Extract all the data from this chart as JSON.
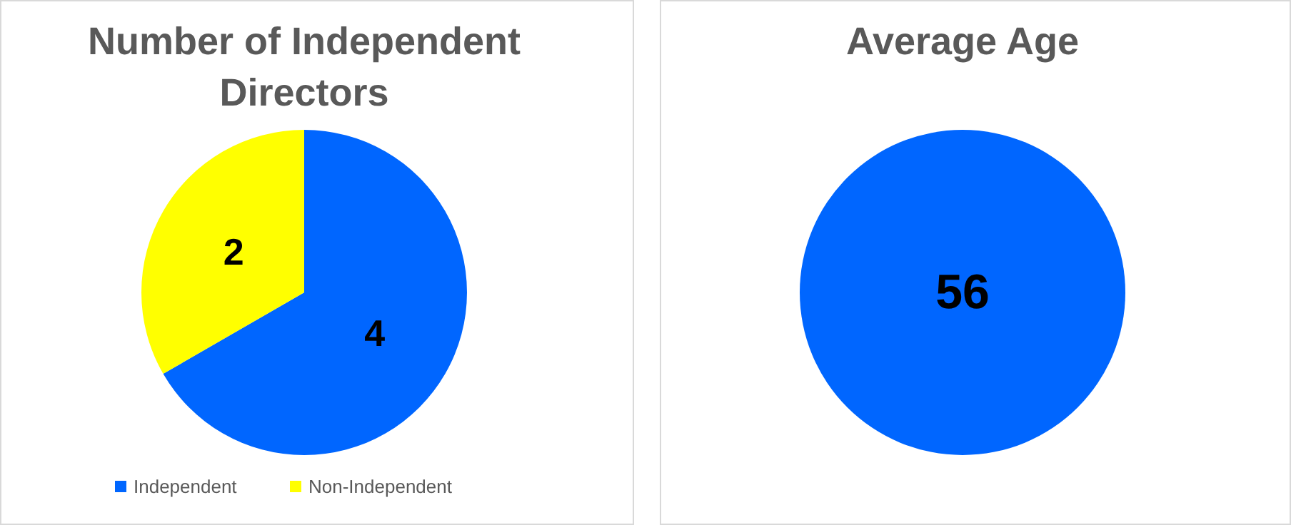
{
  "chart_data": [
    {
      "type": "pie",
      "title": "Number of Independent Directors",
      "categories": [
        "Independent",
        "Non-Independent"
      ],
      "values": [
        4,
        2
      ],
      "colors": [
        "#0066ff",
        "#ffff00"
      ],
      "data_labels": true,
      "legend": "bottom"
    },
    {
      "type": "pie",
      "title": "Average Age",
      "categories": [
        null
      ],
      "values": [
        56
      ],
      "colors": [
        "#0066ff"
      ],
      "data_labels": true
    }
  ]
}
